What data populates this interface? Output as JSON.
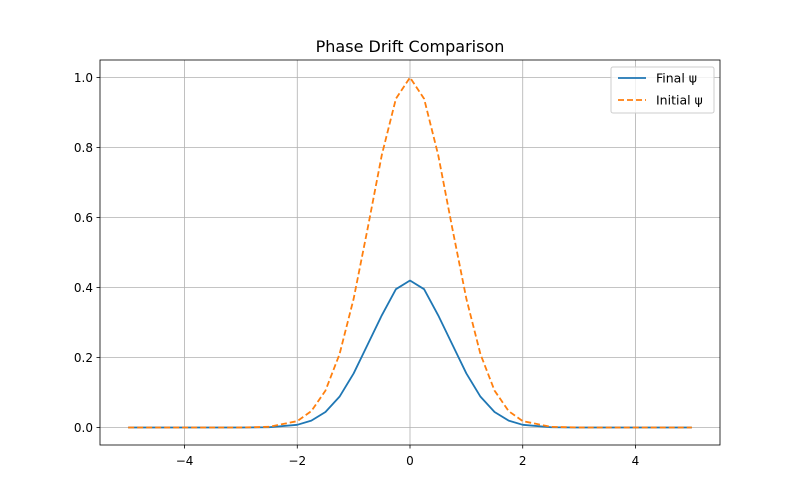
{
  "chart_data": {
    "type": "line",
    "title": "Phase Drift Comparison",
    "xlabel": "",
    "ylabel": "",
    "xlim": [
      -5.5,
      5.5
    ],
    "ylim": [
      -0.05,
      1.05
    ],
    "grid": true,
    "legend_position": "top-right",
    "x_ticks": [
      -4,
      -2,
      0,
      2,
      4
    ],
    "x_tick_labels": [
      "−4",
      "−2",
      "0",
      "2",
      "4"
    ],
    "y_ticks": [
      0.0,
      0.2,
      0.4,
      0.6,
      0.8,
      1.0
    ],
    "y_tick_labels": [
      "0.0",
      "0.2",
      "0.4",
      "0.6",
      "0.8",
      "1.0"
    ],
    "x": [
      -5,
      -4.5,
      -4,
      -3.5,
      -3,
      -2.5,
      -2,
      -1.75,
      -1.5,
      -1.25,
      -1,
      -0.75,
      -0.5,
      -0.25,
      0,
      0.25,
      0.5,
      0.75,
      1,
      1.25,
      1.5,
      1.75,
      2,
      2.5,
      3,
      3.5,
      4,
      4.5,
      5
    ],
    "series": [
      {
        "name": "Final ψ",
        "color": "#1f77b4",
        "dash": "solid",
        "values": [
          0,
          0,
          0,
          0,
          0,
          0.0008,
          0.0077,
          0.0197,
          0.0442,
          0.0881,
          0.1545,
          0.2375,
          0.3206,
          0.3952,
          0.42,
          0.3952,
          0.3206,
          0.2375,
          0.1545,
          0.0881,
          0.0442,
          0.0197,
          0.0077,
          0.0008,
          0,
          0,
          0,
          0,
          0
        ]
      },
      {
        "name": "Initial ψ",
        "color": "#ff7f0e",
        "dash": "dashed",
        "values": [
          0,
          0,
          0,
          0,
          0.0001,
          0.0019,
          0.0183,
          0.0468,
          0.1054,
          0.2096,
          0.3679,
          0.5698,
          0.7788,
          0.9394,
          1.0,
          0.9394,
          0.7788,
          0.5698,
          0.3679,
          0.2096,
          0.1054,
          0.0468,
          0.0183,
          0.0019,
          0.0001,
          0,
          0,
          0,
          0
        ]
      }
    ]
  }
}
